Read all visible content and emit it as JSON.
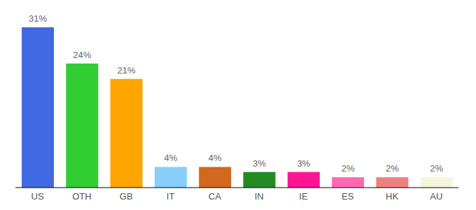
{
  "chart_data": {
    "type": "bar",
    "categories": [
      "US",
      "OTH",
      "GB",
      "IT",
      "CA",
      "IN",
      "IE",
      "ES",
      "HK",
      "AU"
    ],
    "values": [
      31,
      24,
      21,
      4,
      4,
      3,
      3,
      2,
      2,
      2
    ],
    "value_labels": [
      "31%",
      "24%",
      "21%",
      "4%",
      "4%",
      "3%",
      "3%",
      "2%",
      "2%",
      "2%"
    ],
    "colors": [
      "#4169e1",
      "#32cd32",
      "#ffa500",
      "#87cefa",
      "#d2691e",
      "#228b22",
      "#ff1493",
      "#ff69b4",
      "#f08080",
      "#f5f5dc"
    ],
    "data_labels": true,
    "tick_labels": "x"
  }
}
